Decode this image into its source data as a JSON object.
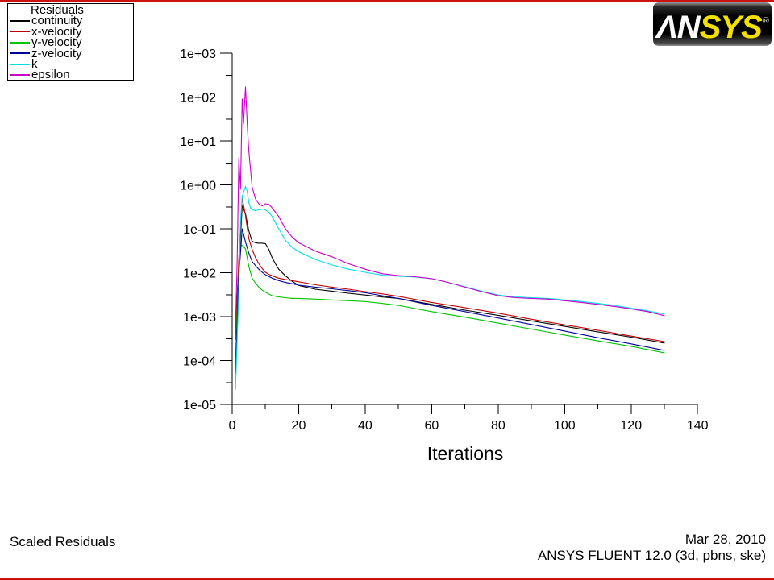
{
  "window": {
    "border_color": "#cc1111"
  },
  "logo": {
    "an": "ΛN",
    "sys": "SYS",
    "registered": "®"
  },
  "legend": {
    "title": "Residuals"
  },
  "footer": {
    "plot_label": "Scaled Residuals",
    "date": "Mar 28, 2010",
    "app": "ANSYS FLUENT 12.0 (3d, pbns, ske)"
  },
  "chart_data": {
    "type": "line",
    "title": "Scaled Residuals",
    "xlabel": "Iterations",
    "ylabel": "",
    "x_ticks": [
      0,
      20,
      40,
      60,
      80,
      100,
      120,
      140
    ],
    "x_minor_ticks": [
      10,
      30,
      50,
      70,
      90,
      110,
      130
    ],
    "xlim": [
      0,
      140
    ],
    "y_scale": "log",
    "y_tick_labels": [
      "1e+03",
      "1e+02",
      "1e+01",
      "1e+00",
      "1e-01",
      "1e-02",
      "1e-03",
      "1e-04",
      "1e-05"
    ],
    "y_tick_decades": [
      3,
      2,
      1,
      0,
      -1,
      -2,
      -3,
      -4,
      -5
    ],
    "ylim": [
      1e-05,
      1000.0
    ],
    "grid": false,
    "legend_position": "top-left",
    "series": [
      {
        "name": "continuity",
        "color": "#000000",
        "points": [
          [
            1,
            0.0008
          ],
          [
            2,
            0.012
          ],
          [
            3,
            0.33
          ],
          [
            4,
            0.22
          ],
          [
            5,
            0.09
          ],
          [
            6,
            0.052
          ],
          [
            7,
            0.048
          ],
          [
            8,
            0.047
          ],
          [
            9,
            0.047
          ],
          [
            10,
            0.046
          ],
          [
            11,
            0.034
          ],
          [
            12,
            0.022
          ],
          [
            13,
            0.016
          ],
          [
            14,
            0.012
          ],
          [
            16,
            0.0085
          ],
          [
            18,
            0.0064
          ],
          [
            20,
            0.0051
          ],
          [
            25,
            0.0042
          ],
          [
            30,
            0.0038
          ],
          [
            35,
            0.0034
          ],
          [
            40,
            0.0031
          ],
          [
            45,
            0.0028
          ],
          [
            50,
            0.0026
          ],
          [
            60,
            0.0019
          ],
          [
            70,
            0.0014
          ],
          [
            80,
            0.00107
          ],
          [
            90,
            0.0008
          ],
          [
            100,
            0.0006
          ],
          [
            110,
            0.00045
          ],
          [
            120,
            0.00034
          ],
          [
            130,
            0.00025
          ]
        ]
      },
      {
        "name": "x-velocity",
        "color": "#c00000",
        "points": [
          [
            1,
            0.0003
          ],
          [
            2,
            0.02
          ],
          [
            3,
            0.5
          ],
          [
            4,
            0.2
          ],
          [
            5,
            0.06
          ],
          [
            6,
            0.034
          ],
          [
            7,
            0.022
          ],
          [
            8,
            0.016
          ],
          [
            9,
            0.0125
          ],
          [
            10,
            0.0102
          ],
          [
            11,
            0.0092
          ],
          [
            12,
            0.0085
          ],
          [
            14,
            0.0075
          ],
          [
            16,
            0.007
          ],
          [
            18,
            0.0066
          ],
          [
            20,
            0.0062
          ],
          [
            25,
            0.0053
          ],
          [
            30,
            0.0047
          ],
          [
            35,
            0.0042
          ],
          [
            40,
            0.0037
          ],
          [
            45,
            0.0033
          ],
          [
            50,
            0.0029
          ],
          [
            60,
            0.0021
          ],
          [
            70,
            0.0016
          ],
          [
            80,
            0.0012
          ],
          [
            90,
            0.00087
          ],
          [
            100,
            0.00065
          ],
          [
            110,
            0.00049
          ],
          [
            120,
            0.00036
          ],
          [
            130,
            0.00027
          ]
        ]
      },
      {
        "name": "y-velocity",
        "color": "#00c400",
        "points": [
          [
            1,
            0.00012
          ],
          [
            2,
            0.01
          ],
          [
            2.5,
            0.04
          ],
          [
            3,
            0.042
          ],
          [
            4,
            0.035
          ],
          [
            5,
            0.014
          ],
          [
            6,
            0.0075
          ],
          [
            7,
            0.0058
          ],
          [
            8,
            0.0047
          ],
          [
            9,
            0.004
          ],
          [
            10,
            0.0036
          ],
          [
            12,
            0.003
          ],
          [
            14,
            0.0028
          ],
          [
            16,
            0.0027
          ],
          [
            18,
            0.0026
          ],
          [
            20,
            0.0026
          ],
          [
            25,
            0.0025
          ],
          [
            30,
            0.0024
          ],
          [
            35,
            0.0023
          ],
          [
            40,
            0.0022
          ],
          [
            45,
            0.002
          ],
          [
            50,
            0.0018
          ],
          [
            60,
            0.0013
          ],
          [
            70,
            0.00097
          ],
          [
            80,
            0.00071
          ],
          [
            90,
            0.00052
          ],
          [
            100,
            0.00038
          ],
          [
            110,
            0.00028
          ],
          [
            120,
            0.00021
          ],
          [
            130,
            0.00015
          ]
        ]
      },
      {
        "name": "z-velocity",
        "color": "#000099",
        "points": [
          [
            1,
            5e-05
          ],
          [
            2,
            0.008
          ],
          [
            3,
            0.1
          ],
          [
            4,
            0.05
          ],
          [
            5,
            0.028
          ],
          [
            6,
            0.018
          ],
          [
            7,
            0.0145
          ],
          [
            8,
            0.012
          ],
          [
            9,
            0.0103
          ],
          [
            10,
            0.009
          ],
          [
            12,
            0.0075
          ],
          [
            14,
            0.0066
          ],
          [
            16,
            0.006
          ],
          [
            18,
            0.0056
          ],
          [
            20,
            0.0052
          ],
          [
            25,
            0.0047
          ],
          [
            30,
            0.0043
          ],
          [
            35,
            0.0039
          ],
          [
            40,
            0.0035
          ],
          [
            45,
            0.003
          ],
          [
            50,
            0.0026
          ],
          [
            60,
            0.0018
          ],
          [
            70,
            0.0013
          ],
          [
            80,
            0.00093
          ],
          [
            90,
            0.00066
          ],
          [
            100,
            0.00047
          ],
          [
            110,
            0.00033
          ],
          [
            120,
            0.00024
          ],
          [
            130,
            0.00017
          ]
        ]
      },
      {
        "name": "k",
        "color": "#00dfe0",
        "points": [
          [
            1,
            2.2e-05
          ],
          [
            2,
            0.004
          ],
          [
            2.5,
            0.15
          ],
          [
            3,
            0.55
          ],
          [
            4,
            0.92
          ],
          [
            4.5,
            0.72
          ],
          [
            5,
            0.4
          ],
          [
            5.5,
            0.3
          ],
          [
            6,
            0.27
          ],
          [
            7,
            0.26
          ],
          [
            8,
            0.27
          ],
          [
            9,
            0.28
          ],
          [
            10,
            0.27
          ],
          [
            11,
            0.24
          ],
          [
            12,
            0.19
          ],
          [
            14,
            0.1
          ],
          [
            16,
            0.055
          ],
          [
            18,
            0.038
          ],
          [
            20,
            0.03
          ],
          [
            25,
            0.02
          ],
          [
            30,
            0.015
          ],
          [
            35,
            0.012
          ],
          [
            40,
            0.0102
          ],
          [
            45,
            0.0088
          ],
          [
            50,
            0.0083
          ],
          [
            55,
            0.008
          ],
          [
            60,
            0.0073
          ],
          [
            65,
            0.006
          ],
          [
            70,
            0.0048
          ],
          [
            75,
            0.0038
          ],
          [
            80,
            0.0031
          ],
          [
            85,
            0.0028
          ],
          [
            90,
            0.0027
          ],
          [
            95,
            0.0026
          ],
          [
            100,
            0.0024
          ],
          [
            105,
            0.0022
          ],
          [
            110,
            0.002
          ],
          [
            115,
            0.0018
          ],
          [
            120,
            0.00155
          ],
          [
            125,
            0.00135
          ],
          [
            130,
            0.00115
          ]
        ]
      },
      {
        "name": "epsilon",
        "color": "#cc00cc",
        "points": [
          [
            1,
            0.0005
          ],
          [
            1.5,
            0.02
          ],
          [
            2,
            4
          ],
          [
            2.5,
            0.8
          ],
          [
            3,
            90
          ],
          [
            3.4,
            25
          ],
          [
            4,
            170
          ],
          [
            4.6,
            18
          ],
          [
            5,
            6
          ],
          [
            6,
            0.9
          ],
          [
            7,
            0.48
          ],
          [
            8,
            0.37
          ],
          [
            9,
            0.33
          ],
          [
            10,
            0.37
          ],
          [
            11,
            0.36
          ],
          [
            12,
            0.3
          ],
          [
            14,
            0.19
          ],
          [
            16,
            0.1
          ],
          [
            18,
            0.065
          ],
          [
            20,
            0.048
          ],
          [
            25,
            0.031
          ],
          [
            30,
            0.023
          ],
          [
            35,
            0.016
          ],
          [
            40,
            0.012
          ],
          [
            45,
            0.0095
          ],
          [
            50,
            0.0086
          ],
          [
            55,
            0.0081
          ],
          [
            60,
            0.0073
          ],
          [
            65,
            0.006
          ],
          [
            70,
            0.0047
          ],
          [
            75,
            0.0037
          ],
          [
            80,
            0.003
          ],
          [
            85,
            0.0027
          ],
          [
            90,
            0.0026
          ],
          [
            95,
            0.0025
          ],
          [
            100,
            0.0023
          ],
          [
            105,
            0.0021
          ],
          [
            110,
            0.0019
          ],
          [
            115,
            0.0017
          ],
          [
            120,
            0.0015
          ],
          [
            125,
            0.0013
          ],
          [
            130,
            0.00105
          ]
        ]
      }
    ]
  }
}
